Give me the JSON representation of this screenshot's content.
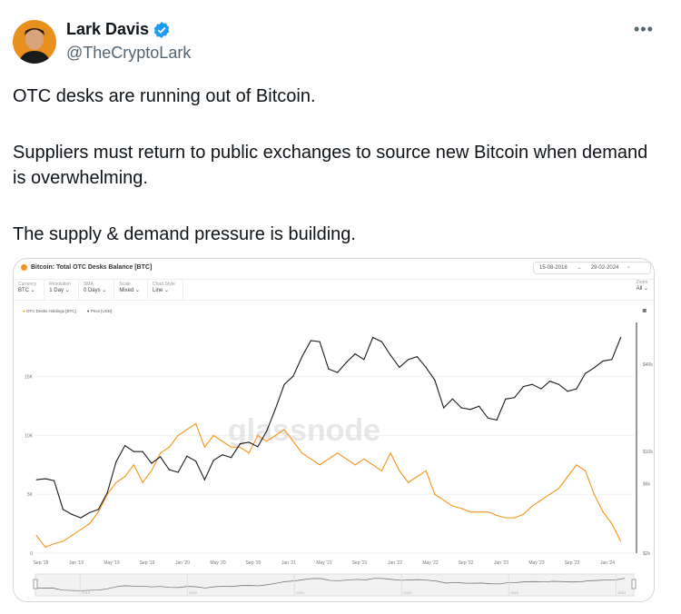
{
  "tweet": {
    "author_name": "Lark Davis",
    "handle": "@TheCryptoLark",
    "more_label": "•••",
    "verified": true,
    "paragraphs": [
      "OTC desks are running out of Bitcoin.",
      "Suppliers must return to public exchanges to source new Bitcoin when demand is overwhelming.",
      "The supply & demand pressure is building."
    ]
  },
  "chart_card": {
    "title": "Bitcoin: Total OTC Desks Balance [BTC]",
    "date_from": "15-08-2018",
    "date_sep": "→",
    "date_to": "29-02-2024",
    "controls": [
      {
        "label": "Currency",
        "value": "BTC ⌄"
      },
      {
        "label": "Resolution",
        "value": "1 Day ⌄"
      },
      {
        "label": "SMA",
        "value": "0 Days ⌄"
      },
      {
        "label": "Scale",
        "value": "Mixed ⌄"
      },
      {
        "label": "Chart Style",
        "value": "Line ⌄"
      }
    ],
    "zoom_label": "Zoom",
    "zoom_value": "All ⌄",
    "watermark": "glassnode",
    "navigator_labels": [
      "2019",
      "2020",
      "2021",
      "2022",
      "2023",
      "2024"
    ]
  },
  "chart_data": {
    "type": "line",
    "title": "Bitcoin: Total OTC Desks Balance [BTC]",
    "colors": {
      "holdings": "#f7931a",
      "price": "#1a1a1a"
    },
    "grid": true,
    "legend": "top-left",
    "x_ticks": [
      "Sep '18",
      "Jan '19",
      "May '19",
      "Sep '19",
      "Jan '20",
      "May '20",
      "Sep '20",
      "Jan '21",
      "May '21",
      "Sep '21",
      "Jan '22",
      "May '22",
      "Sep '22",
      "Jan '23",
      "May '23",
      "Sep '23",
      "Jan '24"
    ],
    "y_left": {
      "ticks": [
        "0",
        "5K",
        "10K",
        "15K"
      ],
      "values": [
        0,
        5000,
        10000,
        15000
      ],
      "range": [
        0,
        19600
      ]
    },
    "y_right": {
      "scale": "log",
      "ticks": [
        "$2k",
        "$6k",
        "$10k",
        "$40k"
      ],
      "values": [
        2000,
        6000,
        10000,
        40000
      ],
      "range": [
        2000,
        75000
      ]
    },
    "x": [
      "2018-08",
      "2018-09",
      "2018-10",
      "2018-11",
      "2018-12",
      "2019-01",
      "2019-02",
      "2019-03",
      "2019-04",
      "2019-05",
      "2019-06",
      "2019-07",
      "2019-08",
      "2019-09",
      "2019-10",
      "2019-11",
      "2019-12",
      "2020-01",
      "2020-02",
      "2020-03",
      "2020-04",
      "2020-05",
      "2020-06",
      "2020-07",
      "2020-08",
      "2020-09",
      "2020-10",
      "2020-11",
      "2020-12",
      "2021-01",
      "2021-02",
      "2021-03",
      "2021-04",
      "2021-05",
      "2021-06",
      "2021-07",
      "2021-08",
      "2021-09",
      "2021-10",
      "2021-11",
      "2021-12",
      "2022-01",
      "2022-02",
      "2022-03",
      "2022-04",
      "2022-05",
      "2022-06",
      "2022-07",
      "2022-08",
      "2022-09",
      "2022-10",
      "2022-11",
      "2022-12",
      "2023-01",
      "2023-02",
      "2023-03",
      "2023-04",
      "2023-05",
      "2023-06",
      "2023-07",
      "2023-08",
      "2023-09",
      "2023-10",
      "2023-11",
      "2023-12",
      "2024-01",
      "2024-02"
    ],
    "series": [
      {
        "name": "OTC Desks Holdings [BTC]",
        "axis": "left",
        "values": [
          1500,
          500,
          800,
          1000,
          1500,
          2000,
          2500,
          3500,
          5000,
          6000,
          6500,
          7500,
          6000,
          7000,
          8500,
          9000,
          10000,
          10500,
          11000,
          9000,
          10000,
          9500,
          9000,
          9000,
          8500,
          10000,
          9500,
          10000,
          10500,
          9500,
          8500,
          8000,
          7500,
          8000,
          8500,
          8000,
          7500,
          8000,
          7500,
          7000,
          8500,
          7000,
          6000,
          6500,
          7000,
          5000,
          4500,
          4000,
          3800,
          3500,
          3500,
          3500,
          3200,
          3000,
          3000,
          3300,
          4000,
          4500,
          5000,
          5500,
          6500,
          7500,
          7000,
          5000,
          3500,
          2500,
          1000
        ]
      },
      {
        "name": "Price [USD]",
        "axis": "right",
        "values": [
          6400,
          6500,
          6300,
          4000,
          3700,
          3500,
          3800,
          4000,
          5200,
          8500,
          11000,
          10000,
          10000,
          8300,
          9200,
          7500,
          7200,
          9300,
          8600,
          6400,
          8700,
          9500,
          9100,
          11300,
          11600,
          10800,
          13800,
          19700,
          29000,
          33000,
          45000,
          58000,
          57000,
          37000,
          35000,
          41000,
          47000,
          43000,
          61000,
          57000,
          46000,
          38000,
          43000,
          45000,
          38000,
          31000,
          20000,
          23000,
          20000,
          19500,
          20500,
          17000,
          16500,
          23000,
          23500,
          28000,
          29000,
          27000,
          30500,
          29000,
          26000,
          27000,
          34500,
          37700,
          42000,
          43000,
          61000
        ]
      }
    ]
  }
}
